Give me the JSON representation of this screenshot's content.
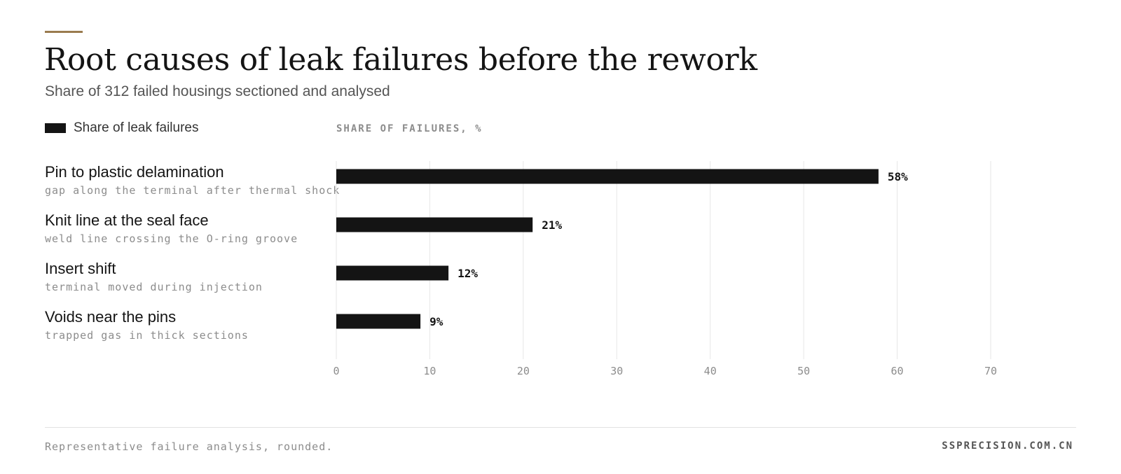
{
  "header": {
    "title": "Root causes of leak failures before the rework",
    "subtitle": "Share of 312 failed housings sectioned and analysed"
  },
  "legend": {
    "label": "Share of leak failures"
  },
  "footer": {
    "note": "Representative failure analysis, rounded.",
    "source": "SSPRECISION.COM.CN"
  },
  "colors": {
    "accent": "#9a7b4f",
    "bar": "#141414",
    "grid": "#e6e6e6"
  },
  "chart_data": {
    "type": "bar",
    "orientation": "horizontal",
    "categories": [
      "Pin to plastic delamination",
      "Knit line at the seal face",
      "Insert shift",
      "Voids near the pins"
    ],
    "category_notes": [
      "gap along the terminal after thermal shock",
      "weld line crossing the O-ring groove",
      "terminal moved during injection",
      "trapped gas in thick sections"
    ],
    "series": [
      {
        "name": "Share of leak failures",
        "values": [
          58,
          21,
          12,
          9
        ]
      }
    ],
    "value_labels": [
      "58%",
      "21%",
      "12%",
      "9%"
    ],
    "xlabel": "SHARE OF FAILURES, %",
    "xlim": [
      0,
      70
    ],
    "xticks": [
      0,
      10,
      20,
      30,
      40,
      50,
      60,
      70
    ],
    "grid": true,
    "legend_position": "top-left"
  }
}
